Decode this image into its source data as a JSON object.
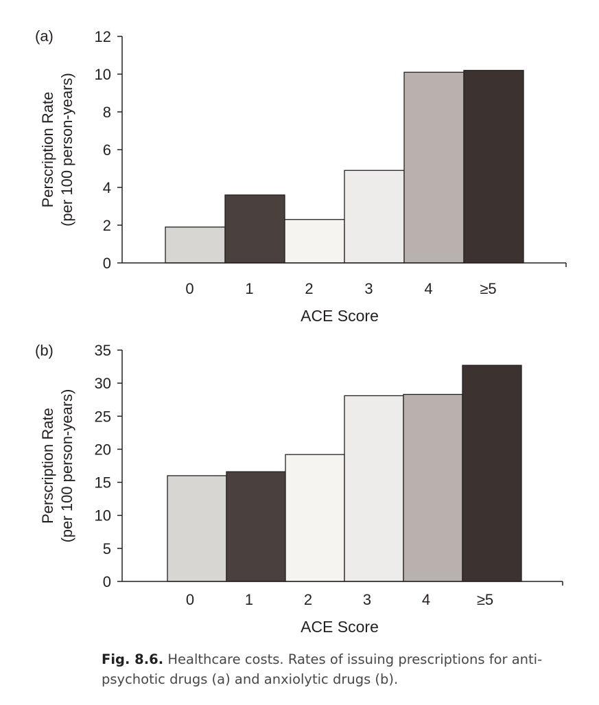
{
  "chart_data": [
    {
      "type": "bar",
      "panel_label": "(a)",
      "categories": [
        "0",
        "1",
        "2",
        "3",
        "4",
        "≥5"
      ],
      "values": [
        1.9,
        3.6,
        2.3,
        4.9,
        10.1,
        10.2
      ],
      "ylabel_line1": "Perscription Rate",
      "ylabel_line2": "(per 100 person-years)",
      "xlabel": "ACE Score",
      "ylim": [
        0,
        12
      ],
      "yticks": [
        0,
        2,
        4,
        6,
        8,
        10,
        12
      ],
      "colors": [
        "#d8d6d3",
        "#4a403d",
        "#f6f4f1",
        "#eeecea",
        "#b9b1ad",
        "#3c3330"
      ],
      "grid": false
    },
    {
      "type": "bar",
      "panel_label": "(b)",
      "categories": [
        "0",
        "1",
        "2",
        "3",
        "4",
        "≥5"
      ],
      "values": [
        16,
        16.6,
        19.2,
        28.1,
        28.3,
        32.7
      ],
      "ylabel_line1": "Perscription Rate",
      "ylabel_line2": "(per 100 person-years)",
      "xlabel": "ACE Score",
      "ylim": [
        0,
        35
      ],
      "yticks": [
        0,
        5,
        10,
        15,
        20,
        25,
        30,
        35
      ],
      "colors": [
        "#d8d6d3",
        "#4a403d",
        "#f6f4f1",
        "#eeecea",
        "#b9b1ad",
        "#3c3330"
      ],
      "grid": false
    }
  ],
  "caption": {
    "label": "Fig. 8.6.",
    "line1": "Healthcare costs. Rates of issuing prescriptions for anti-",
    "line2": "psychotic drugs (a) and anxiolytic drugs (b)."
  }
}
